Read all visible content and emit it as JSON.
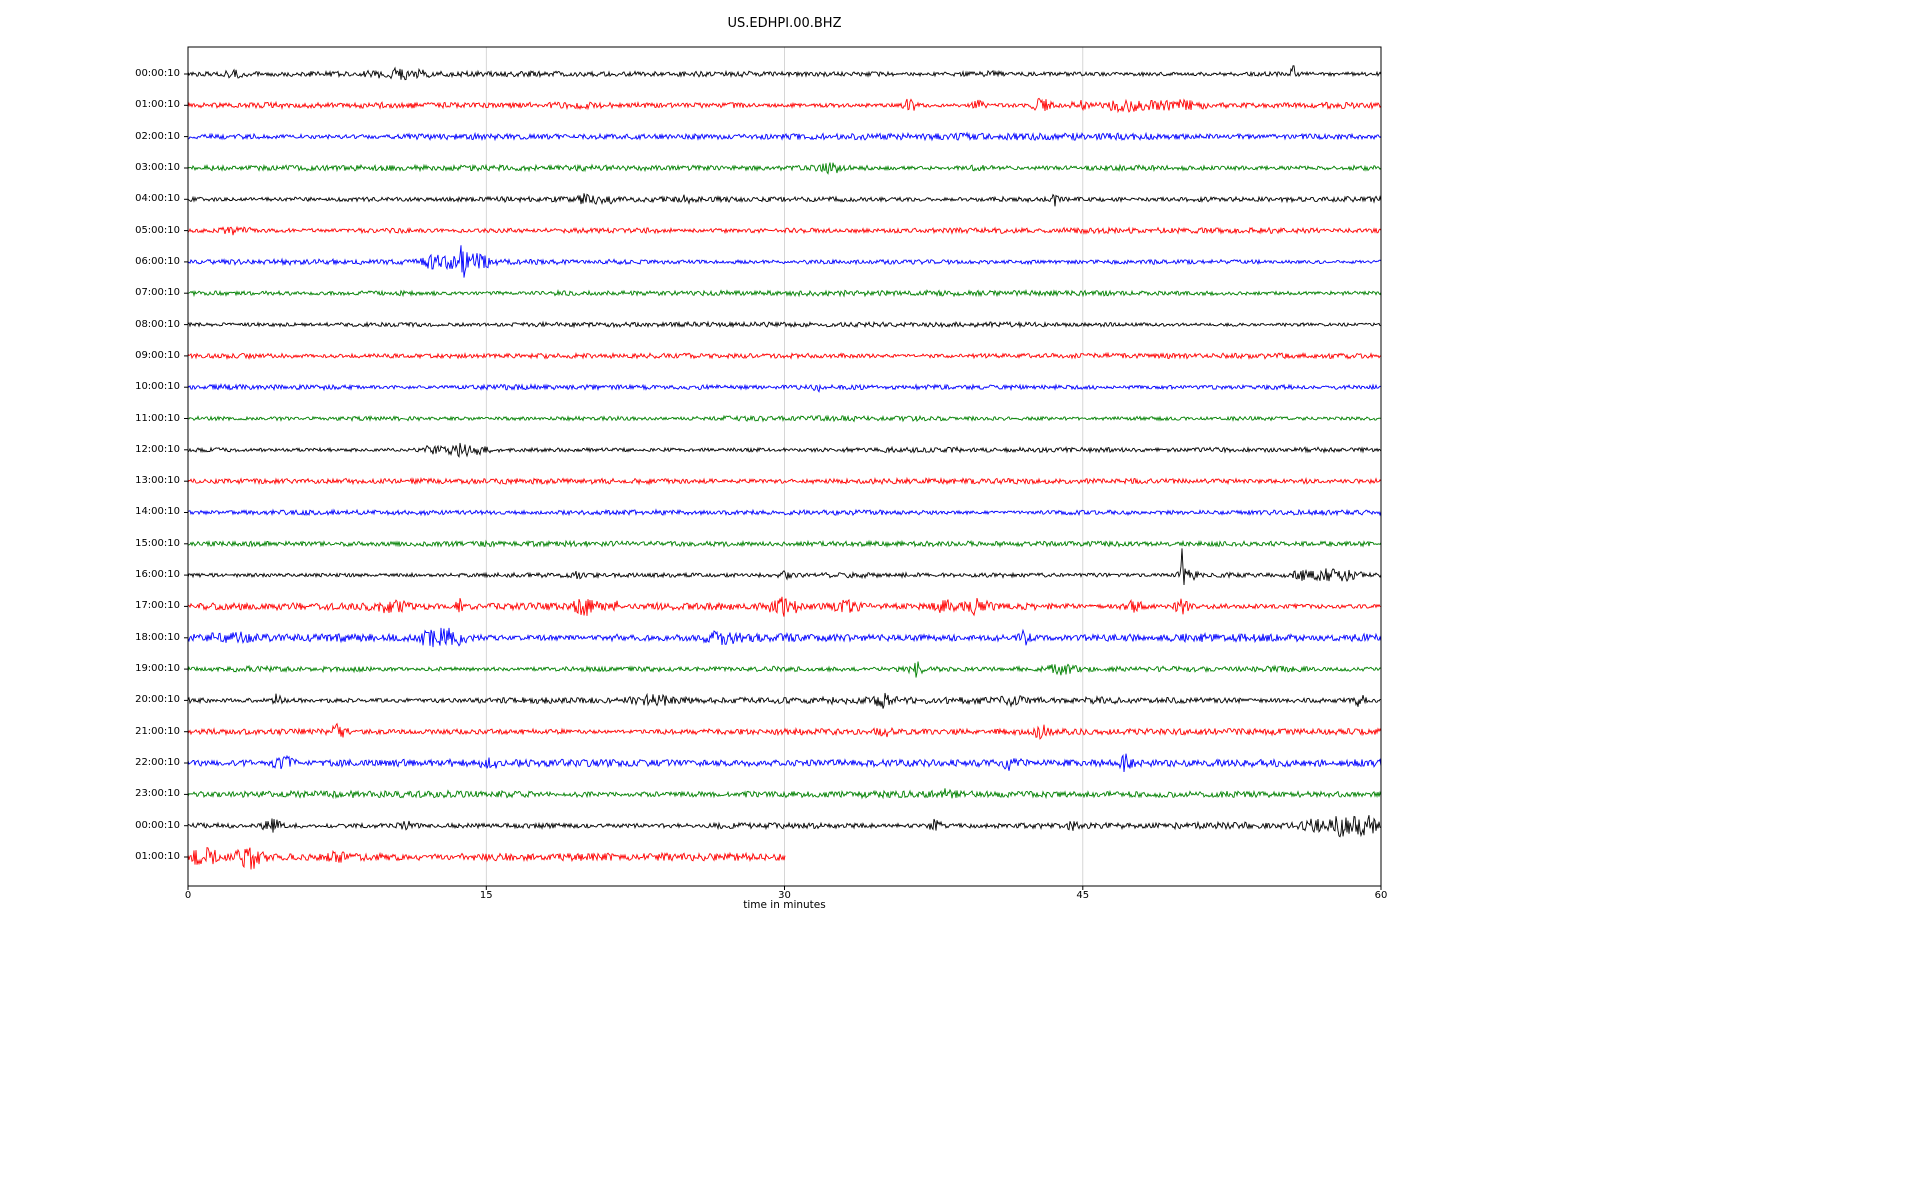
{
  "figure": {
    "title": "US.EDHPI.00.BHZ",
    "xlabel": "time in minutes",
    "background": "#ffffff"
  },
  "chart_data": {
    "type": "line",
    "subtype": "seismogram-dayplot",
    "title": "US.EDHPI.00.BHZ",
    "xlabel": "time in minutes",
    "xlim": [
      0,
      60
    ],
    "x_ticks": [
      0,
      15,
      30,
      45,
      60
    ],
    "grid": true,
    "grid_color": "#cccccc",
    "frame_color": "#000000",
    "trace_color_cycle": [
      "#000000",
      "#ff0000",
      "#0000ff",
      "#008000"
    ],
    "rows": [
      {
        "label": "00:00:10",
        "color": "#000000",
        "base": 2.5,
        "events": [
          {
            "x": 2.3,
            "amp": 2,
            "w": 0.3
          },
          {
            "x": 10.6,
            "amp": 3.5,
            "w": 1.0
          },
          {
            "x": 40.5,
            "amp": 2,
            "w": 0.3
          },
          {
            "x": 55.6,
            "amp": 7,
            "w": 0.1
          }
        ]
      },
      {
        "label": "01:00:10",
        "color": "#ff0000",
        "base": 2.5,
        "events": [
          {
            "x": 20.0,
            "amp": 3,
            "w": 0.15
          },
          {
            "x": 36.3,
            "amp": 9,
            "w": 0.18
          },
          {
            "x": 39.8,
            "amp": 4,
            "w": 0.25
          },
          {
            "x": 43.0,
            "amp": 6,
            "w": 0.35
          },
          {
            "x": 44.8,
            "amp": 4,
            "w": 0.3
          },
          {
            "x": 47.0,
            "amp": 5,
            "w": 0.7
          },
          {
            "x": 49.6,
            "amp": 5,
            "w": 1.0
          }
        ]
      },
      {
        "label": "02:00:10",
        "color": "#0000ff",
        "base": 2.8,
        "events": []
      },
      {
        "label": "03:00:10",
        "color": "#008000",
        "base": 2.5,
        "events": [
          {
            "x": 32.3,
            "amp": 4.5,
            "w": 0.35
          },
          {
            "x": 39.9,
            "amp": 3,
            "w": 0.3
          }
        ]
      },
      {
        "label": "04:00:10",
        "color": "#000000",
        "base": 2.2,
        "events": [
          {
            "x": 20.2,
            "amp": 5,
            "w": 0.35
          },
          {
            "x": 21.0,
            "amp": 4,
            "w": 0.25
          },
          {
            "x": 25.0,
            "amp": 2,
            "w": 0.2
          },
          {
            "x": 43.6,
            "amp": 7,
            "w": 0.08
          }
        ]
      },
      {
        "label": "05:00:10",
        "color": "#ff0000",
        "base": 2.2,
        "events": [
          {
            "x": 2.4,
            "amp": 3,
            "w": 0.5
          }
        ]
      },
      {
        "label": "06:00:10",
        "color": "#0000ff",
        "base": 2.2,
        "events": [
          {
            "x": 12.3,
            "amp": 5,
            "w": 0.35
          },
          {
            "x": 13.1,
            "amp": 7,
            "w": 0.3
          },
          {
            "x": 13.75,
            "amp": 14,
            "w": 0.18
          },
          {
            "x": 14.5,
            "amp": 7,
            "w": 0.45
          }
        ]
      },
      {
        "label": "07:00:10",
        "color": "#008000",
        "base": 2.2,
        "events": []
      },
      {
        "label": "08:00:10",
        "color": "#000000",
        "base": 2.0,
        "events": []
      },
      {
        "label": "09:00:10",
        "color": "#ff0000",
        "base": 2.2,
        "events": []
      },
      {
        "label": "10:00:10",
        "color": "#0000ff",
        "base": 2.2,
        "events": [
          {
            "x": 31.6,
            "amp": 6,
            "w": 0.1
          }
        ]
      },
      {
        "label": "11:00:10",
        "color": "#008000",
        "base": 2.2,
        "events": []
      },
      {
        "label": "12:00:10",
        "color": "#000000",
        "base": 2.2,
        "events": [
          {
            "x": 12.3,
            "amp": 3,
            "w": 0.4
          },
          {
            "x": 13.9,
            "amp": 5.5,
            "w": 0.7
          }
        ]
      },
      {
        "label": "13:00:10",
        "color": "#ff0000",
        "base": 2.2,
        "events": []
      },
      {
        "label": "14:00:10",
        "color": "#0000ff",
        "base": 2.0,
        "events": []
      },
      {
        "label": "15:00:10",
        "color": "#008000",
        "base": 2.2,
        "events": []
      },
      {
        "label": "16:00:10",
        "color": "#000000",
        "base": 2.2,
        "events": [
          {
            "x": 19.6,
            "amp": 5,
            "w": 0.08
          },
          {
            "x": 30.0,
            "amp": 2.5,
            "w": 0.2
          },
          {
            "x": 50.0,
            "amp": 22,
            "w": 0.07
          },
          {
            "x": 50.3,
            "amp": 6,
            "w": 0.3
          },
          {
            "x": 56.0,
            "amp": 4,
            "w": 0.3
          },
          {
            "x": 57.3,
            "amp": 5,
            "w": 0.5
          },
          {
            "x": 58.4,
            "amp": 5,
            "w": 0.4
          }
        ]
      },
      {
        "label": "17:00:10",
        "color": "#ff0000",
        "base": 2.8,
        "events": [
          {
            "x": 10.2,
            "amp": 4,
            "w": 0.6
          },
          {
            "x": 13.6,
            "amp": 7,
            "w": 0.1
          },
          {
            "x": 20.0,
            "amp": 6,
            "w": 0.45
          },
          {
            "x": 21.5,
            "amp": 12,
            "w": 0.07
          },
          {
            "x": 30.0,
            "amp": 7,
            "w": 0.5
          },
          {
            "x": 33.0,
            "amp": 5,
            "w": 0.5
          },
          {
            "x": 38.1,
            "amp": 4.5,
            "w": 0.35
          },
          {
            "x": 39.6,
            "amp": 6,
            "w": 0.45
          },
          {
            "x": 47.6,
            "amp": 4,
            "w": 0.35
          },
          {
            "x": 50.0,
            "amp": 7,
            "w": 0.25
          }
        ]
      },
      {
        "label": "18:00:10",
        "color": "#0000ff",
        "base": 3.2,
        "events": [
          {
            "x": 2.0,
            "amp": 3.5,
            "w": 0.8
          },
          {
            "x": 12.4,
            "amp": 7,
            "w": 0.5
          },
          {
            "x": 13.4,
            "amp": 5,
            "w": 0.4
          },
          {
            "x": 21.5,
            "amp": 5,
            "w": 0.1
          },
          {
            "x": 26.7,
            "amp": 4,
            "w": 0.7
          },
          {
            "x": 42.0,
            "amp": 6,
            "w": 0.2
          }
        ]
      },
      {
        "label": "19:00:10",
        "color": "#008000",
        "base": 2.5,
        "events": [
          {
            "x": 36.6,
            "amp": 6,
            "w": 0.25
          },
          {
            "x": 44.0,
            "amp": 4.5,
            "w": 0.45
          }
        ]
      },
      {
        "label": "20:00:10",
        "color": "#000000",
        "base": 2.8,
        "events": [
          {
            "x": 4.5,
            "amp": 7,
            "w": 0.12
          },
          {
            "x": 23.3,
            "amp": 3.5,
            "w": 0.7
          },
          {
            "x": 35.0,
            "amp": 5,
            "w": 0.3
          },
          {
            "x": 41.4,
            "amp": 3.5,
            "w": 0.3
          },
          {
            "x": 58.9,
            "amp": 6,
            "w": 0.2
          }
        ]
      },
      {
        "label": "21:00:10",
        "color": "#ff0000",
        "base": 2.5,
        "events": [
          {
            "x": 7.6,
            "amp": 6,
            "w": 0.25
          },
          {
            "x": 35.0,
            "amp": 4.5,
            "w": 0.25
          },
          {
            "x": 42.9,
            "amp": 5,
            "w": 0.3
          }
        ]
      },
      {
        "label": "22:00:10",
        "color": "#0000ff",
        "base": 3.0,
        "events": [
          {
            "x": 4.8,
            "amp": 5,
            "w": 0.35
          },
          {
            "x": 15.2,
            "amp": 3,
            "w": 0.3
          },
          {
            "x": 41.3,
            "amp": 5,
            "w": 0.3
          },
          {
            "x": 47.2,
            "amp": 7,
            "w": 0.18
          }
        ]
      },
      {
        "label": "23:00:10",
        "color": "#008000",
        "base": 2.8,
        "events": [
          {
            "x": 38.2,
            "amp": 3,
            "w": 0.3
          }
        ]
      },
      {
        "label": "00:00:10",
        "color": "#000000",
        "base": 2.8,
        "events": [
          {
            "x": 4.2,
            "amp": 6,
            "w": 0.3
          },
          {
            "x": 11.0,
            "amp": 3,
            "w": 0.3
          },
          {
            "x": 37.6,
            "amp": 6,
            "w": 0.18
          },
          {
            "x": 44.5,
            "amp": 3,
            "w": 0.2
          },
          {
            "x": 56.6,
            "amp": 5,
            "w": 0.3
          },
          {
            "x": 57.9,
            "amp": 9,
            "w": 0.35
          },
          {
            "x": 58.8,
            "amp": 8,
            "w": 0.35
          },
          {
            "x": 59.4,
            "amp": 7,
            "w": 0.25
          }
        ]
      },
      {
        "label": "01:00:10",
        "color": "#ff0000",
        "base": 3.0,
        "x_end": 30,
        "events": [
          {
            "x": 0.5,
            "amp": 5,
            "w": 0.3
          },
          {
            "x": 1.1,
            "amp": 6,
            "w": 0.3
          },
          {
            "x": 3.1,
            "amp": 9,
            "w": 0.45
          },
          {
            "x": 7.5,
            "amp": 3,
            "w": 0.3
          }
        ]
      }
    ]
  }
}
